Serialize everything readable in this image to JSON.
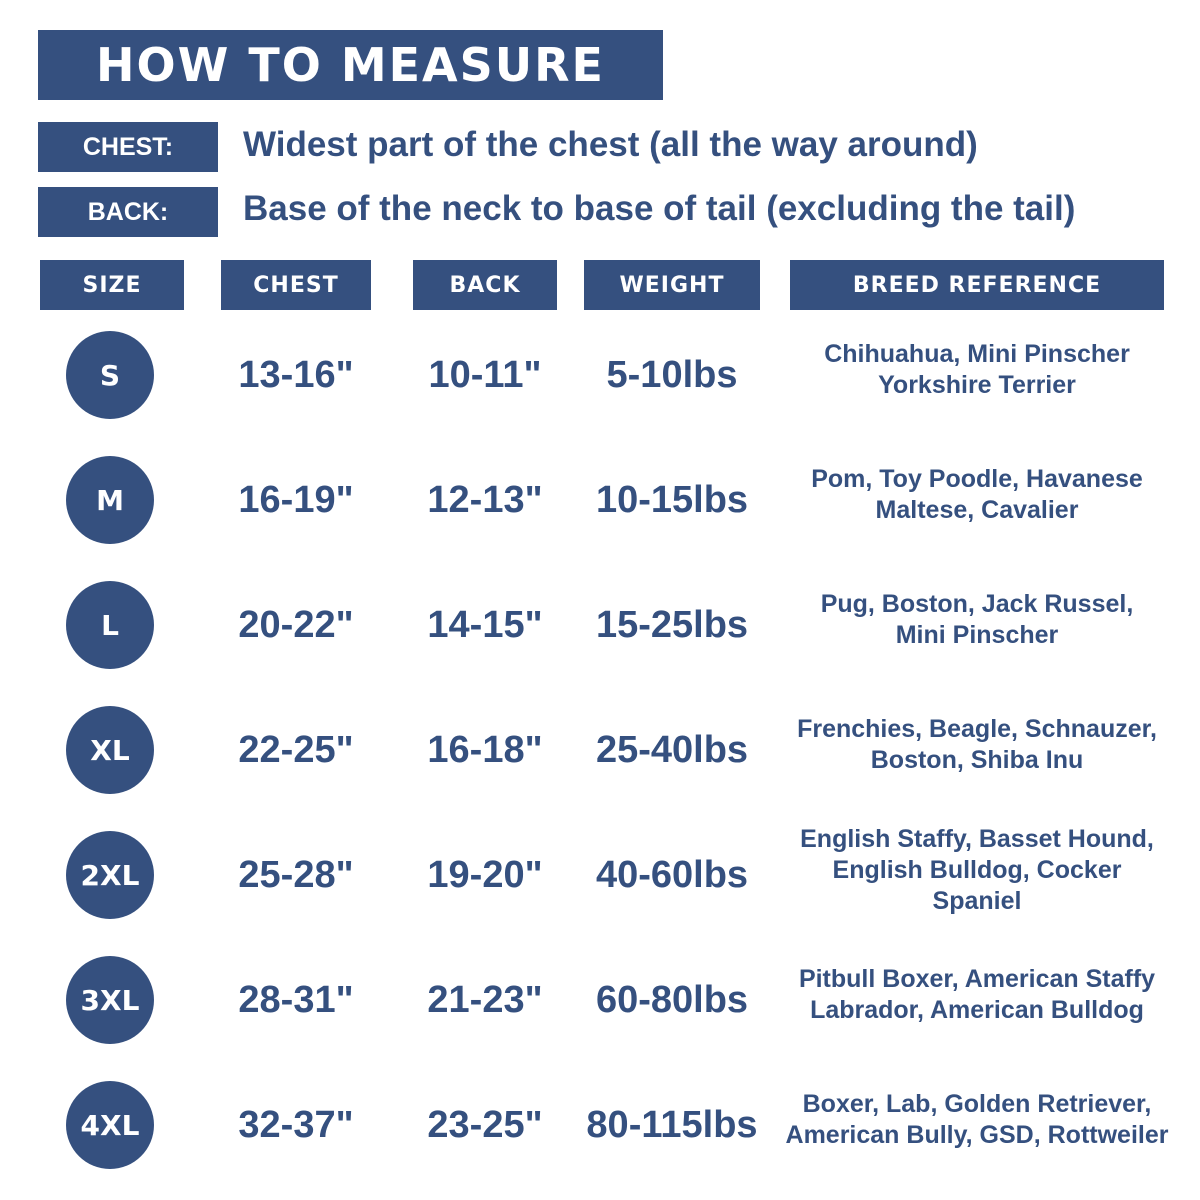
{
  "header": {
    "title": "HOW TO MEASURE"
  },
  "definitions": [
    {
      "label": "CHEST:",
      "text": "Widest part of the chest (all the way around)"
    },
    {
      "label": "BACK:",
      "text": "Base of the neck to base of tail (excluding the tail)"
    }
  ],
  "table": {
    "columns": [
      "SIZE",
      "CHEST",
      "BACK",
      "WEIGHT",
      "BREED REFERENCE"
    ],
    "rows": [
      {
        "size": "S",
        "chest": "13-16\"",
        "back": "10-11\"",
        "weight": "5-10lbs",
        "breed": [
          "Chihuahua, Mini Pinscher",
          "Yorkshire Terrier"
        ]
      },
      {
        "size": "M",
        "chest": "16-19\"",
        "back": "12-13\"",
        "weight": "10-15lbs",
        "breed": [
          "Pom, Toy Poodle, Havanese",
          "Maltese, Cavalier"
        ]
      },
      {
        "size": "L",
        "chest": "20-22\"",
        "back": "14-15\"",
        "weight": "15-25lbs",
        "breed": [
          "Pug, Boston, Jack Russel,",
          "Mini Pinscher"
        ]
      },
      {
        "size": "XL",
        "chest": "22-25\"",
        "back": "16-18\"",
        "weight": "25-40lbs",
        "breed": [
          "Frenchies, Beagle, Schnauzer,",
          "Boston, Shiba Inu"
        ]
      },
      {
        "size": "2XL",
        "chest": "25-28\"",
        "back": "19-20\"",
        "weight": "40-60lbs",
        "breed": [
          "English Staffy, Basset Hound,",
          "English Bulldog, Cocker",
          "Spaniel"
        ]
      },
      {
        "size": "3XL",
        "chest": "28-31\"",
        "back": "21-23\"",
        "weight": "60-80lbs",
        "breed": [
          "Pitbull Boxer, American Staffy",
          "Labrador, American Bulldog"
        ]
      },
      {
        "size": "4XL",
        "chest": "32-37\"",
        "back": "23-25\"",
        "weight": "80-115lbs",
        "breed": [
          "Boxer, Lab, Golden Retriever,",
          "American Bully, GSD, Rottweiler"
        ]
      }
    ]
  }
}
